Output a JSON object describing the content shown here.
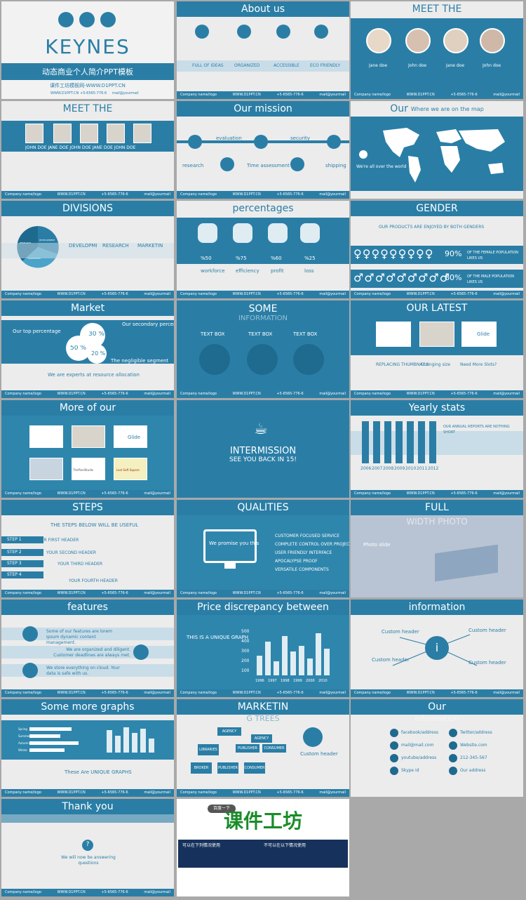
{
  "footer": {
    "company": "Company name/logo",
    "website": "WWW.D1PPT.CN",
    "phone": "+5-6565-776-6",
    "email": "mail@yourmail"
  },
  "cover": {
    "title": "KEYNES",
    "subtitle": "动态商业个人简介PPT模板",
    "line": "课件工坊模板网-WWW.D1PPT.CN",
    "site": "WWW.D1PPT.CN",
    "phone": "+5-6565-776-6",
    "email": "mail@yourmail"
  },
  "about": {
    "title": "About us",
    "items": [
      "FULL OF IDEAS",
      "ORGANIZED",
      "ACCESSIBLE",
      "ECO FRIENDLY"
    ]
  },
  "meet1": {
    "title": "MEET THE",
    "names": [
      "Jane doe",
      "John doe",
      "Jane doe",
      "John doe"
    ]
  },
  "meet2": {
    "title": "MEET THE",
    "names": "JOHN DOE JANE DOE JOHN DOE JANE DOE JOHN DOE"
  },
  "mission": {
    "title": "Our mission",
    "steps": [
      "research",
      "evaluation",
      "Time assessment",
      "security",
      "shipping"
    ]
  },
  "map": {
    "title": "Our",
    "subtitle": "Where we are on the map",
    "caption": "We're all over the world"
  },
  "divisions": {
    "title": "DIVISIONS",
    "cols": [
      "DEVELOPMENT",
      "RESEARCH",
      "MARKETING"
    ],
    "pie": [
      "DEVELOPMENT",
      "MARKETING",
      "RESEARCH"
    ]
  },
  "percent": {
    "title": "percentages",
    "values": [
      "%50",
      "%75",
      "%60",
      "%25"
    ],
    "labels": [
      "workforce",
      "efficiency",
      "profit",
      "loss"
    ]
  },
  "gender": {
    "title": "GENDER",
    "headline": "OUR PRODUCTS ARE ENJOYED BY BOTH GENDERS",
    "female_pct": "90%",
    "female_text": "OF THE FEMALE POPULATION LIKES US",
    "male_pct": "80%",
    "male_text": "OF THE MALE POPULATION LIKES US"
  },
  "market": {
    "title": "Market",
    "top": "Our top percentage",
    "secondary": "Our secondary percentage",
    "negligible": "The negligible segment",
    "v30": "30 %",
    "v50": "50 %",
    "v20": "20 %",
    "bottom": "We are experts at resource allocation"
  },
  "some": {
    "title": "SOME",
    "subtitle": "INFORMATION",
    "boxes": [
      "TEXT BOX",
      "TEXT BOX",
      "TEXT BOX"
    ]
  },
  "latest": {
    "title": "OUR LATEST",
    "items": [
      "REPLACING THUMBNAILS",
      "Changing size",
      "Need More Slots?"
    ],
    "glide": "Glide"
  },
  "moreof": {
    "title": "More of our",
    "glide": "Glide",
    "logos": [
      "ThePixelStudio",
      "Lost Soft Square"
    ]
  },
  "intermission": {
    "title": "INTERMISSION",
    "subtitle": "SEE YOU BACK IN 15!"
  },
  "yearly": {
    "title": "Yearly stats",
    "reports": "OUR ANNUAL REPORTS ARE NOTHING SHORT",
    "years": [
      "2006",
      "2007",
      "2008",
      "2009",
      "2010",
      "2011",
      "2012"
    ],
    "values": [
      "3k",
      "2k",
      "5k",
      "6k",
      "1k"
    ]
  },
  "steps": {
    "title": "STEPS",
    "headline": "THE STEPS BELOW WILL BE USEFUL",
    "steps": [
      "STEP 1",
      "STEP 2",
      "STEP 3",
      "STEP 4"
    ],
    "headers": [
      "YOUR FIRST HEADER",
      "YOUR SECOND HEADER",
      "YOUR THIRD HEADER",
      "YOUR FOURTH HEADER"
    ]
  },
  "qualities": {
    "title": "QUALITIES",
    "monitor": "We promise you this",
    "list": [
      "CUSTOMER FOCUSED SERVICE",
      "COMPLETE CONTROL OVER PROJECT",
      "USER FRIENDLY INTERFACE",
      "APOCALYPSE PROOF",
      "VERSATILE COMPONENTS"
    ]
  },
  "fullphoto": {
    "title": "FULL",
    "subtitle": "WIDTH PHOTO",
    "caption": "Photo slide"
  },
  "features": {
    "title": "features",
    "lines": [
      "Some of our features are lorem ipsum dynamic content management.",
      "We are organized and diligent. Customer deadlines are always met.",
      "We store everything on cloud. Your data is safe with us."
    ]
  },
  "price": {
    "title": "Price discrepancy between",
    "text": "THIS IS A UNIQUE GRAPH",
    "yaxis": [
      "500",
      "400",
      "300",
      "200",
      "100"
    ],
    "years": [
      "1996",
      "1997",
      "1998",
      "1999",
      "2000",
      "2010"
    ]
  },
  "information": {
    "title": "information",
    "labels": [
      "Custom header",
      "Custom header",
      "Custom header",
      "Custom header"
    ]
  },
  "graphs": {
    "title": "Some more graphs",
    "caption": "These Are UNIQUE GRAPHS",
    "cats": [
      "Spring",
      "Summer",
      "Autumn",
      "Winter"
    ]
  },
  "trees": {
    "title": "MARKETIN",
    "subtitle": "G TREES",
    "nodes": [
      "AGENCY",
      "AGENCY",
      "PUBLISHER",
      "CONSUMER",
      "LIBRARIES",
      "BROKER",
      "PUBLISHER",
      "CONSUMER"
    ],
    "custom": "Custom header"
  },
  "contact": {
    "title": "Our",
    "subtitle": "information",
    "items": [
      "facebook/address",
      "mail@mail.com",
      "youtube/address",
      "Skype id",
      "Twitter/address",
      "Website.com",
      "212-345-567",
      "Our address"
    ]
  },
  "thanks": {
    "title": "Thank you",
    "q": "?",
    "text": "We will now be answering questions"
  },
  "promo": {
    "badge": "百度一下",
    "title": "课件工坊",
    "ok": "可以在下列情况使用",
    "no": "不可以在以下情况使用"
  }
}
